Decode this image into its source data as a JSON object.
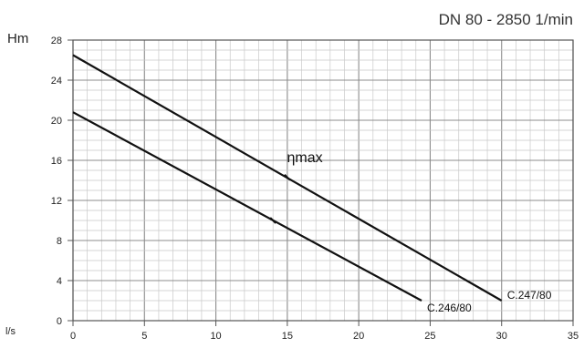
{
  "chart_data": {
    "type": "line",
    "title": "DN 80 - 2850 1/min",
    "ylabel": "Hm",
    "xlabel": "l/s",
    "xlim": [
      0,
      35
    ],
    "ylim": [
      0,
      28
    ],
    "x_ticks": [
      0,
      5,
      10,
      15,
      20,
      25,
      30,
      35
    ],
    "y_ticks": [
      0,
      4,
      8,
      12,
      16,
      20,
      24,
      28
    ],
    "grid": true,
    "series": [
      {
        "name": "C.247/80",
        "x": [
          0,
          30
        ],
        "y": [
          26.5,
          2.0
        ]
      },
      {
        "name": "C.246/80",
        "x": [
          0,
          24.4
        ],
        "y": [
          20.8,
          2.0
        ]
      }
    ],
    "annotations": [
      {
        "text": "ηmax",
        "x": 16.0,
        "y": 16.0
      }
    ],
    "efficiency_marks": [
      {
        "x": 15.0,
        "y": 14.3
      },
      {
        "x": 14.0,
        "y": 10.0
      }
    ]
  }
}
